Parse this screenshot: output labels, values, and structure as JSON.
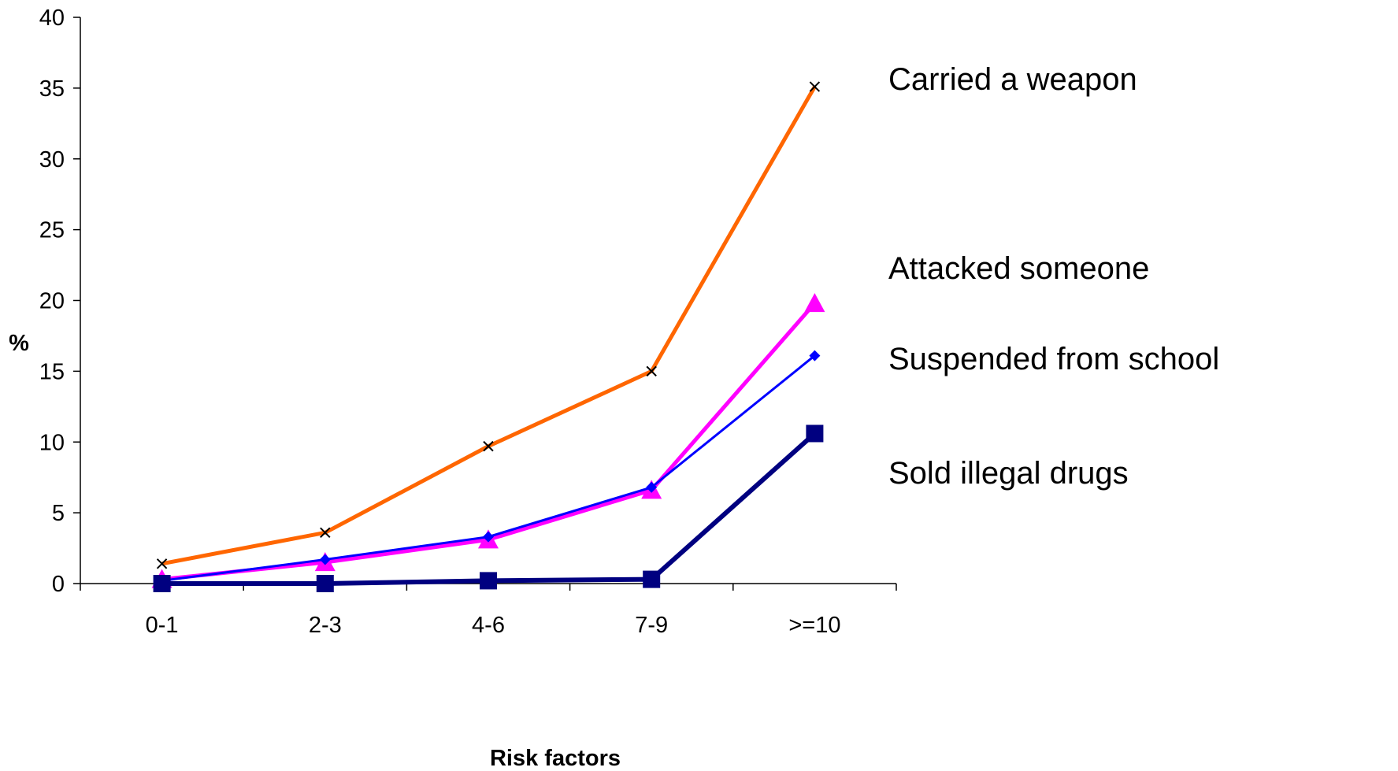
{
  "chart_data": {
    "type": "line",
    "title": "",
    "xlabel": "Risk factors",
    "ylabel": "%",
    "categories": [
      "0-1",
      "2-3",
      "4-6",
      "7-9",
      ">=10"
    ],
    "ylim": [
      0,
      40
    ],
    "yticks": [
      0,
      5,
      10,
      15,
      20,
      25,
      30,
      35,
      40
    ],
    "grid": false,
    "legend": "right",
    "series": [
      {
        "name": "Carried a weapon",
        "values": [
          1.4,
          3.6,
          9.7,
          15,
          35.1
        ],
        "color": "#ff6600",
        "marker": "x"
      },
      {
        "name": "Attacked someone",
        "values": [
          0.3,
          1.5,
          3.1,
          6.6,
          19.8
        ],
        "color": "#ff00ff",
        "marker": "triangle"
      },
      {
        "name": "Suspended from school",
        "values": [
          0.2,
          1.7,
          3.3,
          6.8,
          16.1
        ],
        "color": "#0000ff",
        "marker": "diamond"
      },
      {
        "name": "Sold illegal drugs",
        "values": [
          0,
          0,
          0.2,
          0.3,
          10.6
        ],
        "color": "#000080",
        "marker": "square"
      }
    ]
  }
}
